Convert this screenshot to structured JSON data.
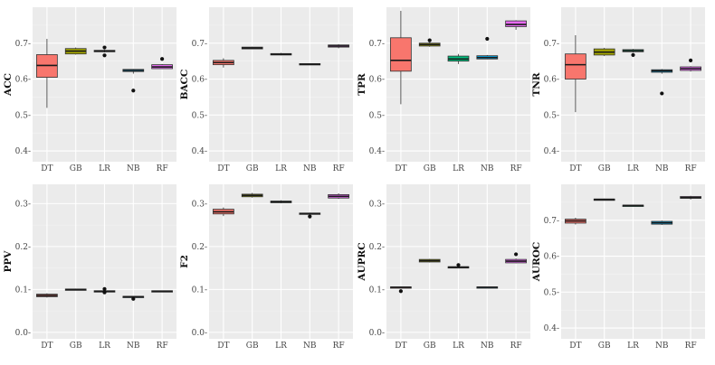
{
  "colors": {
    "DT": "#f8766d",
    "GB": "#a3a500",
    "LR": "#00bf7d",
    "NB": "#00b0f6",
    "RF": "#e76bf3"
  },
  "chart_data": [
    {
      "type": "box",
      "ylabel": "ACC",
      "ylim": [
        0.37,
        0.8
      ],
      "yticks": [
        0.4,
        0.5,
        0.6,
        0.7
      ],
      "ytick_labels": [
        "0.4-",
        "0.5-",
        "0.6-",
        "0.7-"
      ],
      "categories": [
        "DT",
        "GB",
        "LR",
        "NB",
        "RF"
      ],
      "boxes": [
        {
          "cat": "DT",
          "lo": 0.52,
          "q1": 0.605,
          "med": 0.638,
          "q3": 0.668,
          "hi": 0.712,
          "outliers": []
        },
        {
          "cat": "GB",
          "lo": 0.668,
          "q1": 0.67,
          "med": 0.678,
          "q3": 0.685,
          "hi": 0.688,
          "outliers": []
        },
        {
          "cat": "LR",
          "lo": 0.674,
          "q1": 0.676,
          "med": 0.678,
          "q3": 0.68,
          "hi": 0.682,
          "outliers": [
            0.688,
            0.666
          ]
        },
        {
          "cat": "NB",
          "lo": 0.615,
          "q1": 0.621,
          "med": 0.624,
          "q3": 0.627,
          "hi": 0.628,
          "outliers": [
            0.568
          ]
        },
        {
          "cat": "RF",
          "lo": 0.628,
          "q1": 0.629,
          "med": 0.634,
          "q3": 0.64,
          "hi": 0.642,
          "outliers": [
            0.656
          ]
        }
      ]
    },
    {
      "type": "box",
      "ylabel": "BACC",
      "ylim": [
        0.37,
        0.8
      ],
      "yticks": [
        0.4,
        0.5,
        0.6,
        0.7
      ],
      "ytick_labels": [
        "0.4-",
        "0.5-",
        "0.6-",
        "0.7-"
      ],
      "categories": [
        "DT",
        "GB",
        "LR",
        "NB",
        "RF"
      ],
      "boxes": [
        {
          "cat": "DT",
          "lo": 0.632,
          "q1": 0.64,
          "med": 0.646,
          "q3": 0.652,
          "hi": 0.658,
          "outliers": []
        },
        {
          "cat": "GB",
          "lo": 0.683,
          "q1": 0.684,
          "med": 0.686,
          "q3": 0.689,
          "hi": 0.69,
          "outliers": []
        },
        {
          "cat": "LR",
          "lo": 0.666,
          "q1": 0.667,
          "med": 0.669,
          "q3": 0.671,
          "hi": 0.673,
          "outliers": []
        },
        {
          "cat": "NB",
          "lo": 0.639,
          "q1": 0.64,
          "med": 0.641,
          "q3": 0.643,
          "hi": 0.644,
          "outliers": []
        },
        {
          "cat": "RF",
          "lo": 0.686,
          "q1": 0.689,
          "med": 0.692,
          "q3": 0.695,
          "hi": 0.697,
          "outliers": []
        }
      ]
    },
    {
      "type": "box",
      "ylabel": "TPR",
      "ylim": [
        0.37,
        0.8
      ],
      "yticks": [
        0.4,
        0.5,
        0.6,
        0.7
      ],
      "ytick_labels": [
        "0.4-",
        "0.5-",
        "0.6-",
        "0.7-"
      ],
      "categories": [
        "DT",
        "GB",
        "LR",
        "NB",
        "RF"
      ],
      "boxes": [
        {
          "cat": "DT",
          "lo": 0.53,
          "q1": 0.622,
          "med": 0.652,
          "q3": 0.715,
          "hi": 0.79,
          "outliers": []
        },
        {
          "cat": "GB",
          "lo": 0.69,
          "q1": 0.692,
          "med": 0.696,
          "q3": 0.7,
          "hi": 0.703,
          "outliers": [
            0.708
          ]
        },
        {
          "cat": "LR",
          "lo": 0.642,
          "q1": 0.65,
          "med": 0.656,
          "q3": 0.664,
          "hi": 0.67,
          "outliers": []
        },
        {
          "cat": "NB",
          "lo": 0.655,
          "q1": 0.656,
          "med": 0.66,
          "q3": 0.665,
          "hi": 0.667,
          "outliers": [
            0.712
          ]
        },
        {
          "cat": "RF",
          "lo": 0.737,
          "q1": 0.746,
          "med": 0.752,
          "q3": 0.762,
          "hi": 0.764,
          "outliers": []
        }
      ]
    },
    {
      "type": "box",
      "ylabel": "TNR",
      "ylim": [
        0.37,
        0.8
      ],
      "yticks": [
        0.4,
        0.5,
        0.6,
        0.7
      ],
      "ytick_labels": [
        "0.4-",
        "0.5-",
        "0.6-",
        "0.7-"
      ],
      "categories": [
        "DT",
        "GB",
        "LR",
        "NB",
        "RF"
      ],
      "boxes": [
        {
          "cat": "DT",
          "lo": 0.508,
          "q1": 0.6,
          "med": 0.64,
          "q3": 0.67,
          "hi": 0.722,
          "outliers": []
        },
        {
          "cat": "GB",
          "lo": 0.664,
          "q1": 0.667,
          "med": 0.675,
          "q3": 0.684,
          "hi": 0.687,
          "outliers": []
        },
        {
          "cat": "LR",
          "lo": 0.674,
          "q1": 0.676,
          "med": 0.679,
          "q3": 0.682,
          "hi": 0.684,
          "outliers": [
            0.667
          ]
        },
        {
          "cat": "NB",
          "lo": 0.615,
          "q1": 0.619,
          "med": 0.623,
          "q3": 0.626,
          "hi": 0.628,
          "outliers": [
            0.56
          ]
        },
        {
          "cat": "RF",
          "lo": 0.621,
          "q1": 0.624,
          "med": 0.629,
          "q3": 0.634,
          "hi": 0.636,
          "outliers": [
            0.652
          ]
        }
      ]
    },
    {
      "type": "box",
      "ylabel": "PPV",
      "ylim": [
        -0.015,
        0.345
      ],
      "yticks": [
        0.0,
        0.1,
        0.2,
        0.3
      ],
      "ytick_labels": [
        "0.0-",
        "0.1-",
        "0.2-",
        "0.3-"
      ],
      "categories": [
        "DT",
        "GB",
        "LR",
        "NB",
        "RF"
      ],
      "boxes": [
        {
          "cat": "DT",
          "lo": 0.081,
          "q1": 0.083,
          "med": 0.086,
          "q3": 0.089,
          "hi": 0.091,
          "outliers": []
        },
        {
          "cat": "GB",
          "lo": 0.099,
          "q1": 0.099,
          "med": 0.1,
          "q3": 0.101,
          "hi": 0.102,
          "outliers": []
        },
        {
          "cat": "LR",
          "lo": 0.094,
          "q1": 0.095,
          "med": 0.096,
          "q3": 0.097,
          "hi": 0.098,
          "outliers": [
            0.101,
            0.093
          ]
        },
        {
          "cat": "NB",
          "lo": 0.081,
          "q1": 0.082,
          "med": 0.083,
          "q3": 0.084,
          "hi": 0.085,
          "outliers": [
            0.078
          ]
        },
        {
          "cat": "RF",
          "lo": 0.094,
          "q1": 0.095,
          "med": 0.096,
          "q3": 0.097,
          "hi": 0.097,
          "outliers": []
        }
      ]
    },
    {
      "type": "box",
      "ylabel": "F2",
      "ylim": [
        -0.015,
        0.345
      ],
      "yticks": [
        0.0,
        0.1,
        0.2,
        0.3
      ],
      "ytick_labels": [
        "0.0-",
        "0.1-",
        "0.2-",
        "0.3-"
      ],
      "categories": [
        "DT",
        "GB",
        "LR",
        "NB",
        "RF"
      ],
      "boxes": [
        {
          "cat": "DT",
          "lo": 0.271,
          "q1": 0.276,
          "med": 0.281,
          "q3": 0.287,
          "hi": 0.291,
          "outliers": []
        },
        {
          "cat": "GB",
          "lo": 0.314,
          "q1": 0.316,
          "med": 0.319,
          "q3": 0.322,
          "hi": 0.325,
          "outliers": []
        },
        {
          "cat": "LR",
          "lo": 0.301,
          "q1": 0.302,
          "med": 0.304,
          "q3": 0.306,
          "hi": 0.308,
          "outliers": []
        },
        {
          "cat": "NB",
          "lo": 0.274,
          "q1": 0.275,
          "med": 0.277,
          "q3": 0.278,
          "hi": 0.279,
          "outliers": [
            0.27
          ]
        },
        {
          "cat": "RF",
          "lo": 0.311,
          "q1": 0.313,
          "med": 0.317,
          "q3": 0.321,
          "hi": 0.324,
          "outliers": []
        }
      ]
    },
    {
      "type": "box",
      "ylabel": "AUPRC",
      "ylim": [
        -0.015,
        0.345
      ],
      "yticks": [
        0.0,
        0.1,
        0.2,
        0.3
      ],
      "ytick_labels": [
        "0.0-",
        "0.1-",
        "0.2-",
        "0.3-"
      ],
      "categories": [
        "DT",
        "GB",
        "LR",
        "NB",
        "RF"
      ],
      "boxes": [
        {
          "cat": "DT",
          "lo": 0.103,
          "q1": 0.104,
          "med": 0.105,
          "q3": 0.106,
          "hi": 0.107,
          "outliers": [
            0.096
          ]
        },
        {
          "cat": "GB",
          "lo": 0.163,
          "q1": 0.164,
          "med": 0.167,
          "q3": 0.17,
          "hi": 0.171,
          "outliers": []
        },
        {
          "cat": "LR",
          "lo": 0.15,
          "q1": 0.151,
          "med": 0.152,
          "q3": 0.153,
          "hi": 0.154,
          "outliers": [
            0.157
          ]
        },
        {
          "cat": "NB",
          "lo": 0.103,
          "q1": 0.104,
          "med": 0.105,
          "q3": 0.106,
          "hi": 0.106,
          "outliers": []
        },
        {
          "cat": "RF",
          "lo": 0.161,
          "q1": 0.162,
          "med": 0.166,
          "q3": 0.17,
          "hi": 0.172,
          "outliers": [
            0.182
          ]
        }
      ]
    },
    {
      "type": "box",
      "ylabel": "AUROC",
      "ylim": [
        0.37,
        0.8
      ],
      "yticks": [
        0.4,
        0.5,
        0.6,
        0.7
      ],
      "ytick_labels": [
        "0.4-",
        "0.5-",
        "0.6-",
        "0.7-"
      ],
      "categories": [
        "DT",
        "GB",
        "LR",
        "NB",
        "RF"
      ],
      "boxes": [
        {
          "cat": "DT",
          "lo": 0.688,
          "q1": 0.692,
          "med": 0.698,
          "q3": 0.703,
          "hi": 0.707,
          "outliers": []
        },
        {
          "cat": "GB",
          "lo": 0.756,
          "q1": 0.757,
          "med": 0.758,
          "q3": 0.759,
          "hi": 0.76,
          "outliers": []
        },
        {
          "cat": "LR",
          "lo": 0.739,
          "q1": 0.74,
          "med": 0.741,
          "q3": 0.742,
          "hi": 0.743,
          "outliers": []
        },
        {
          "cat": "NB",
          "lo": 0.687,
          "q1": 0.689,
          "med": 0.693,
          "q3": 0.697,
          "hi": 0.699,
          "outliers": []
        },
        {
          "cat": "RF",
          "lo": 0.758,
          "q1": 0.761,
          "med": 0.763,
          "q3": 0.766,
          "hi": 0.768,
          "outliers": []
        }
      ]
    }
  ]
}
